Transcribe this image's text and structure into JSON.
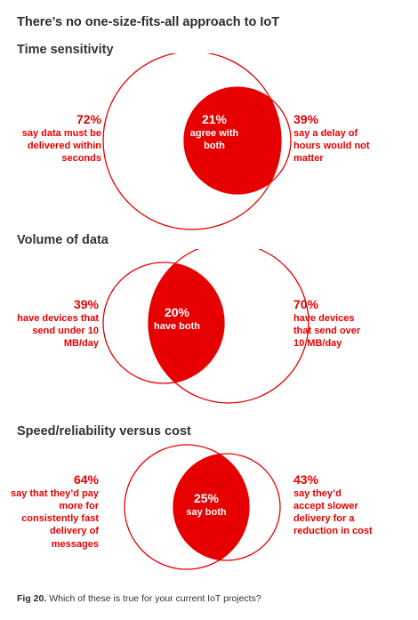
{
  "title": "There’s no one-size-fits-all approach to IoT",
  "colors": {
    "accent": "#e60000",
    "circle_stroke": "#e60000"
  },
  "sections": [
    {
      "title": "Time sensitivity",
      "left": {
        "pct": "72%",
        "text": "say data must be delivered within seconds"
      },
      "overlap": {
        "pct": "21%",
        "text": "agree with both"
      },
      "right": {
        "pct": "39%",
        "text": "say a delay of hours would not matter"
      }
    },
    {
      "title": "Volume of data",
      "left": {
        "pct": "39%",
        "text": "have devices that send under 10 MB/day"
      },
      "overlap": {
        "pct": "20%",
        "text": "have both"
      },
      "right": {
        "pct": "70%",
        "text": "have devices that send over 10 MB/day"
      }
    },
    {
      "title": "Speed/reliability versus cost",
      "left": {
        "pct": "64%",
        "text": "say that they’d pay more for consistently fast delivery of messages"
      },
      "overlap": {
        "pct": "25%",
        "text": "say both"
      },
      "right": {
        "pct": "43%",
        "text": "say they’d accept slower delivery for a reduction in cost"
      }
    }
  ],
  "caption": {
    "label": "Fig 20.",
    "text": "Which of these is true for your current IoT projects?"
  }
}
